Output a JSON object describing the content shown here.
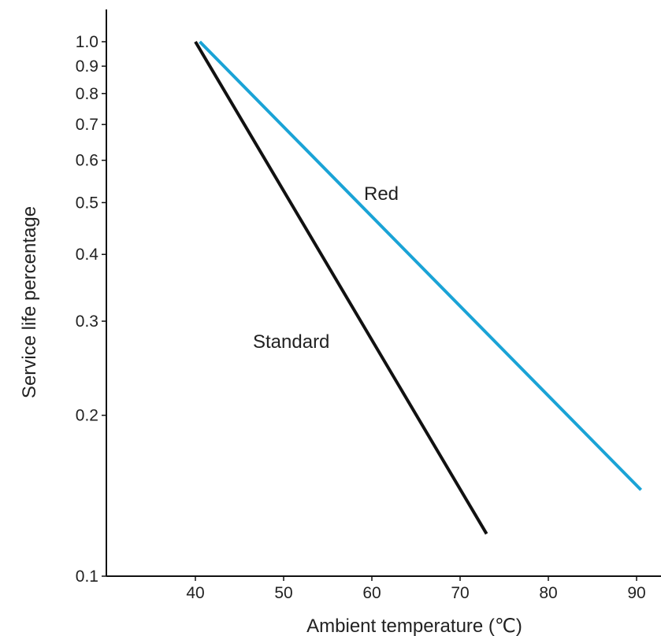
{
  "chart_data": {
    "type": "line",
    "xlabel": "Ambient temperature (℃)",
    "ylabel": "Service life percentage",
    "x_ticks": [
      40,
      50,
      60,
      70,
      80,
      90
    ],
    "y_ticks": [
      0.1,
      0.2,
      0.3,
      0.4,
      0.5,
      0.6,
      0.7,
      0.8,
      0.9,
      1.0
    ],
    "y_tick_labels": [
      "0.1",
      "0.2",
      "0.3",
      "0.4",
      "0.5",
      "0.6",
      "0.7",
      "0.8",
      "0.9",
      "1.0"
    ],
    "xlim": [
      30,
      92
    ],
    "ylim": [
      0.1,
      1.0
    ],
    "y_scale": "log",
    "grid": false,
    "series": [
      {
        "name": "Standard",
        "color": "#111111",
        "x": [
          40,
          73
        ],
        "y": [
          1.0,
          0.12
        ]
      },
      {
        "name": "Red",
        "color": "#1aa3d6",
        "x": [
          40.5,
          90.5
        ],
        "y": [
          1.0,
          0.145
        ]
      }
    ]
  }
}
